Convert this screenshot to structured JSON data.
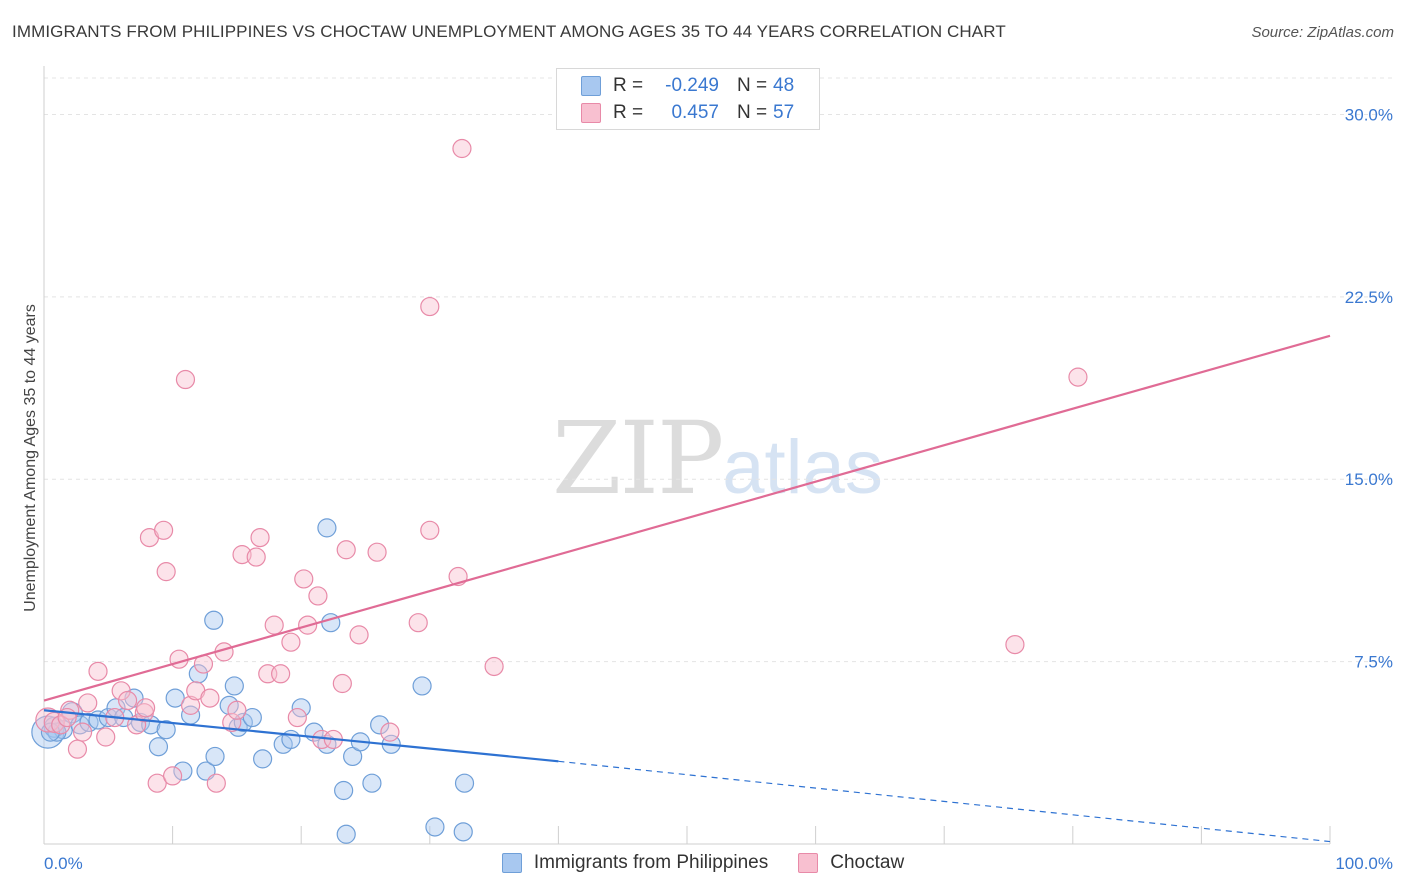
{
  "title": "IMMIGRANTS FROM PHILIPPINES VS CHOCTAW UNEMPLOYMENT AMONG AGES 35 TO 44 YEARS CORRELATION CHART",
  "source": "Source: ZipAtlas.com",
  "watermark": {
    "zip": "ZIP",
    "atlas": "atlas"
  },
  "legend": {
    "rows": [
      {
        "r_label": "R =",
        "r_value": "-0.249",
        "n_label": "N =",
        "n_value": "48",
        "color": "#a8c8f0",
        "border": "#6f9fd8"
      },
      {
        "r_label": "R =",
        "r_value": "0.457",
        "n_label": "N =",
        "n_value": "57",
        "color": "#f8c0d0",
        "border": "#e88aa8"
      }
    ]
  },
  "chart_data": {
    "type": "scatter",
    "title": "IMMIGRANTS FROM PHILIPPINES VS CHOCTAW UNEMPLOYMENT AMONG AGES 35 TO 44 YEARS CORRELATION CHART",
    "xlabel": "",
    "ylabel": "Unemployment Among Ages 35 to 44 years",
    "xlim": [
      0,
      100
    ],
    "ylim": [
      0,
      31.5
    ],
    "x_tick_labels": [
      "0.0%",
      "100.0%"
    ],
    "y_ticks": [
      7.5,
      15.0,
      22.5,
      30.0
    ],
    "y_tick_labels": [
      "7.5%",
      "15.0%",
      "22.5%",
      "30.0%"
    ],
    "grid": true,
    "series": [
      {
        "name": "Immigrants from Philippines",
        "color": "#a8c8f0",
        "stroke": "#6f9fd8",
        "line_color": "#2e72d2",
        "trend": {
          "x0": 0,
          "y0": 5.5,
          "x1": 40,
          "y1": 3.4,
          "dash_to_x": 100,
          "dash_to_y": 0.1
        },
        "points": [
          [
            0.3,
            4.6
          ],
          [
            0.8,
            4.8
          ],
          [
            1.5,
            4.7
          ],
          [
            2.2,
            5.4
          ],
          [
            2.8,
            4.9
          ],
          [
            3.5,
            5.0
          ],
          [
            4.2,
            5.1
          ],
          [
            5.0,
            5.2
          ],
          [
            5.6,
            5.6
          ],
          [
            6.2,
            5.2
          ],
          [
            7.0,
            6.0
          ],
          [
            7.5,
            5.0
          ],
          [
            8.3,
            4.9
          ],
          [
            8.9,
            4.0
          ],
          [
            9.5,
            4.7
          ],
          [
            10.2,
            6.0
          ],
          [
            10.8,
            3.0
          ],
          [
            11.4,
            5.3
          ],
          [
            12.0,
            7.0
          ],
          [
            12.6,
            3.0
          ],
          [
            13.3,
            3.6
          ],
          [
            13.2,
            9.2
          ],
          [
            14.4,
            5.7
          ],
          [
            14.8,
            6.5
          ],
          [
            15.1,
            4.8
          ],
          [
            15.5,
            5.0
          ],
          [
            16.2,
            5.2
          ],
          [
            17.0,
            3.5
          ],
          [
            18.6,
            4.1
          ],
          [
            19.2,
            4.3
          ],
          [
            20.0,
            5.6
          ],
          [
            21.0,
            4.6
          ],
          [
            22.0,
            4.1
          ],
          [
            22.3,
            9.1
          ],
          [
            22.0,
            13.0
          ],
          [
            23.3,
            2.2
          ],
          [
            24.0,
            3.6
          ],
          [
            24.6,
            4.2
          ],
          [
            25.5,
            2.5
          ],
          [
            26.1,
            4.9
          ],
          [
            27.0,
            4.1
          ],
          [
            29.4,
            6.5
          ],
          [
            30.4,
            0.7
          ],
          [
            32.6,
            0.5
          ],
          [
            32.7,
            2.5
          ],
          [
            23.5,
            0.4
          ],
          [
            1.0,
            4.6
          ],
          [
            0.5,
            4.6
          ]
        ],
        "sizes": [
          16,
          10,
          9,
          10,
          9,
          9,
          9,
          9,
          9,
          9,
          9,
          9,
          9,
          9,
          9,
          9,
          9,
          9,
          9,
          9,
          9,
          9,
          9,
          9,
          9,
          9,
          9,
          9,
          9,
          9,
          9,
          9,
          9,
          9,
          9,
          9,
          9,
          9,
          9,
          9,
          9,
          9,
          9,
          9,
          9,
          9,
          9,
          9
        ]
      },
      {
        "name": "Choctaw",
        "color": "#f8c0d0",
        "stroke": "#e88aa8",
        "line_color": "#e06b95",
        "trend": {
          "x0": 0,
          "y0": 5.9,
          "x1": 100,
          "y1": 20.9
        },
        "points": [
          [
            0.3,
            5.1
          ],
          [
            0.8,
            5.0
          ],
          [
            1.3,
            4.9
          ],
          [
            2.0,
            5.5
          ],
          [
            2.6,
            3.9
          ],
          [
            3.4,
            5.8
          ],
          [
            4.2,
            7.1
          ],
          [
            4.8,
            4.4
          ],
          [
            5.5,
            5.2
          ],
          [
            6.0,
            6.3
          ],
          [
            6.5,
            5.9
          ],
          [
            7.2,
            4.9
          ],
          [
            7.8,
            5.4
          ],
          [
            7.9,
            5.6
          ],
          [
            8.2,
            12.6
          ],
          [
            8.8,
            2.5
          ],
          [
            9.3,
            12.9
          ],
          [
            9.5,
            11.2
          ],
          [
            10.0,
            2.8
          ],
          [
            10.5,
            7.6
          ],
          [
            11.0,
            19.1
          ],
          [
            11.4,
            5.7
          ],
          [
            11.8,
            6.3
          ],
          [
            12.4,
            7.4
          ],
          [
            12.9,
            6.0
          ],
          [
            13.4,
            2.5
          ],
          [
            14.0,
            7.9
          ],
          [
            14.6,
            5.0
          ],
          [
            15.0,
            5.5
          ],
          [
            15.4,
            11.9
          ],
          [
            16.5,
            11.8
          ],
          [
            16.8,
            12.6
          ],
          [
            17.4,
            7.0
          ],
          [
            17.9,
            9.0
          ],
          [
            18.4,
            7.0
          ],
          [
            19.2,
            8.3
          ],
          [
            19.7,
            5.2
          ],
          [
            20.2,
            10.9
          ],
          [
            20.5,
            9.0
          ],
          [
            21.3,
            10.2
          ],
          [
            21.6,
            4.3
          ],
          [
            22.5,
            4.3
          ],
          [
            23.2,
            6.6
          ],
          [
            23.5,
            12.1
          ],
          [
            24.5,
            8.6
          ],
          [
            25.9,
            12.0
          ],
          [
            26.9,
            4.6
          ],
          [
            29.1,
            9.1
          ],
          [
            30.0,
            12.9
          ],
          [
            30.0,
            22.1
          ],
          [
            32.2,
            11.0
          ],
          [
            32.5,
            28.6
          ],
          [
            35.0,
            7.3
          ],
          [
            75.5,
            8.2
          ],
          [
            80.4,
            19.2
          ],
          [
            1.8,
            5.2
          ],
          [
            3.0,
            4.6
          ]
        ],
        "sizes": [
          12,
          10,
          9,
          9,
          9,
          9,
          9,
          9,
          9,
          9,
          9,
          9,
          9,
          9,
          9,
          9,
          9,
          9,
          9,
          9,
          9,
          9,
          9,
          9,
          9,
          9,
          9,
          9,
          9,
          9,
          9,
          9,
          9,
          9,
          9,
          9,
          9,
          9,
          9,
          9,
          9,
          9,
          9,
          9,
          9,
          9,
          9,
          9,
          9,
          9,
          9,
          9,
          9,
          9,
          9,
          9,
          9
        ]
      }
    ]
  }
}
